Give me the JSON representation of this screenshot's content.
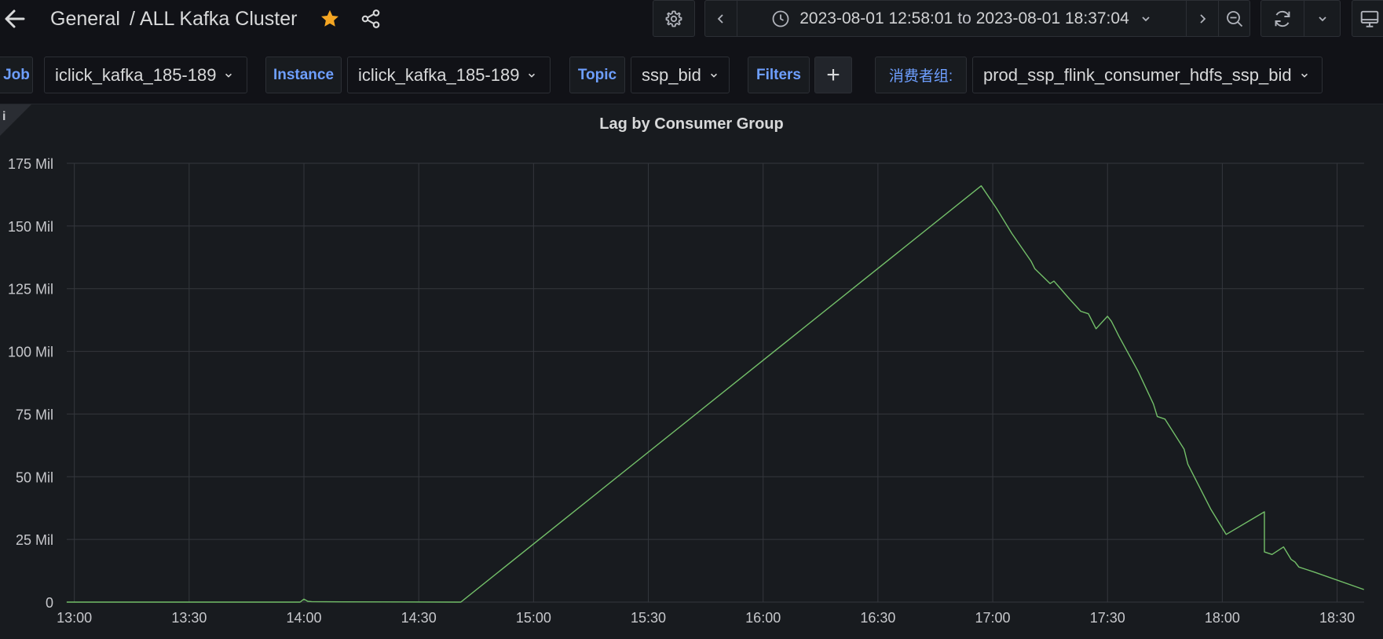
{
  "header": {
    "folder": "General",
    "separator": "/",
    "dashboard_title": "ALL Kafka Cluster",
    "icons": [
      "arrow-left-icon",
      "star-icon",
      "share-icon"
    ]
  },
  "toolbar": {
    "time_from": "2023-08-01 12:58:01",
    "time_to_word": "to",
    "time_to": "2023-08-01 18:37:04",
    "icons": [
      "gear-icon",
      "chevron-left-icon",
      "clock-icon",
      "chevron-down-icon",
      "chevron-right-icon",
      "zoom-out-icon",
      "refresh-icon",
      "chevron-down-icon",
      "tv-monitor-icon"
    ]
  },
  "variables": [
    {
      "label": "Job",
      "value": "iclick_kafka_185-189"
    },
    {
      "label": "Instance",
      "value": "iclick_kafka_185-189"
    },
    {
      "label": "Topic",
      "value": "ssp_bid"
    },
    {
      "label": "Filters",
      "value": "+"
    },
    {
      "label": "消费者组:",
      "value": "prod_ssp_flink_consumer_hdfs_ssp_bid"
    }
  ],
  "panel": {
    "title": "Lag by Consumer Group",
    "info_icon": "info-icon"
  },
  "chart_data": {
    "type": "line",
    "title": "Lag by Consumer Group",
    "xlabel": "",
    "ylabel": "",
    "x_ticks": [
      "13:00",
      "13:30",
      "14:00",
      "14:30",
      "15:00",
      "15:30",
      "16:00",
      "16:30",
      "17:00",
      "17:30",
      "18:00",
      "18:30"
    ],
    "y_ticks": [
      "0",
      "25 Mil",
      "50 Mil",
      "75 Mil",
      "100 Mil",
      "125 Mil",
      "150 Mil",
      "175 Mil"
    ],
    "xlim": [
      "12:58:01",
      "18:37:04"
    ],
    "ylim": [
      0,
      175
    ],
    "y_unit": "Mil",
    "grid": true,
    "legend": "none",
    "series": [
      {
        "color": "#73bf69",
        "x": [
          "12:58",
          "13:30",
          "13:59",
          "14:00",
          "14:01",
          "14:02",
          "14:10",
          "14:40",
          "14:41",
          "16:57",
          "17:01",
          "17:05",
          "17:10",
          "17:11",
          "17:15",
          "17:16",
          "17:20",
          "17:23",
          "17:25",
          "17:27",
          "17:30",
          "17:31",
          "17:32",
          "17:33",
          "17:38",
          "17:42",
          "17:43",
          "17:45",
          "17:50",
          "17:51",
          "17:57",
          "18:01",
          "18:11",
          "18:11",
          "18:13",
          "18:16",
          "18:18",
          "18:19",
          "18:20",
          "18:22",
          "18:24",
          "18:37"
        ],
        "values": [
          0,
          0,
          0,
          1.2,
          0.3,
          0.2,
          0.1,
          0,
          0,
          166,
          157,
          147,
          136,
          133,
          127,
          128,
          121,
          116,
          115,
          109,
          114,
          112,
          109,
          106,
          92,
          79,
          74,
          73,
          61,
          55,
          37,
          27,
          36,
          20,
          19,
          22,
          17,
          16,
          14,
          13,
          12,
          5
        ]
      }
    ]
  }
}
